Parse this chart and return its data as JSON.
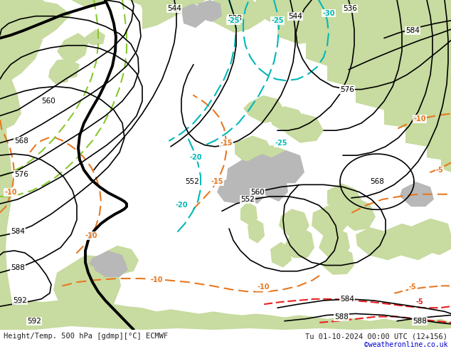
{
  "title_left": "Height/Temp. 500 hPa [gdmp][°C] ECMWF",
  "title_right": "Tu 01-10-2024 00:00 UTC (12+156)",
  "watermark": "©weatheronline.co.uk",
  "bg_sea": "#d8d8d8",
  "bg_land_green": "#c8dba0",
  "bg_land_grey": "#b8b8b8",
  "black": "#000000",
  "orange": "#e87820",
  "cyan": "#00b8b8",
  "lime": "#88c830",
  "red": "#e82020",
  "white": "#ffffff",
  "blue": "#0000cc",
  "text_dark": "#202020",
  "figw": 6.34,
  "figh": 4.9,
  "dpi": 100
}
